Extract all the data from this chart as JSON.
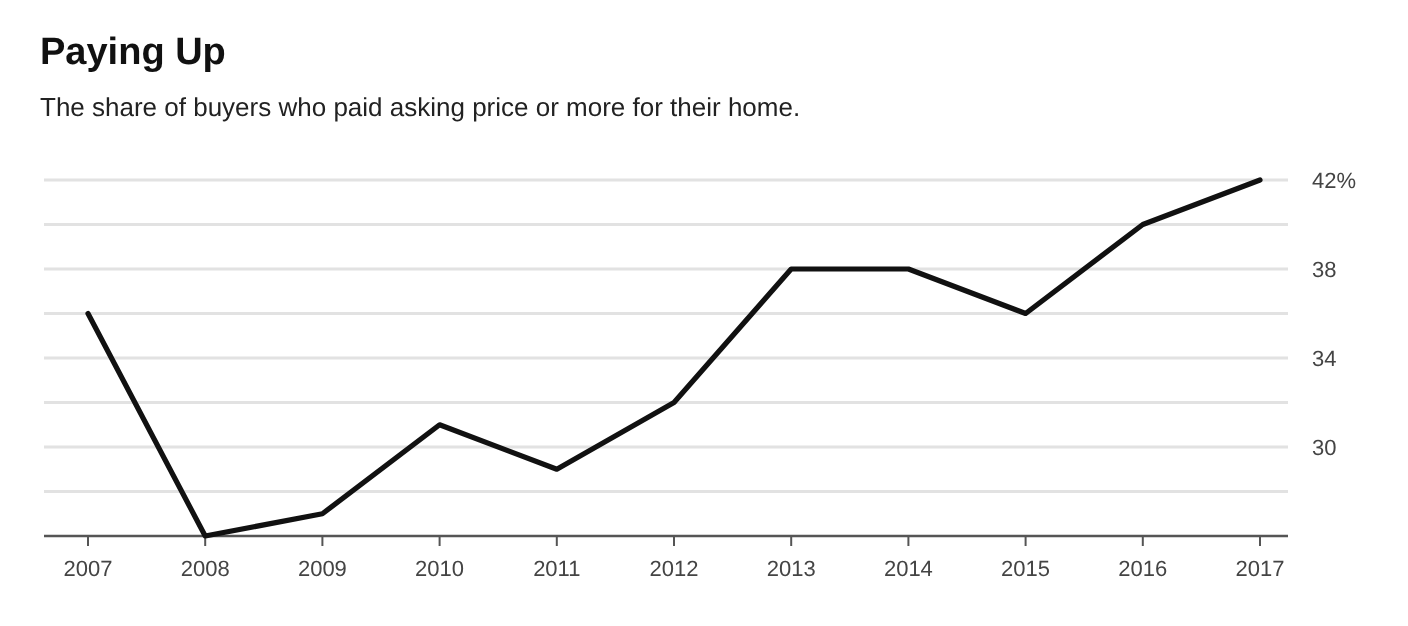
{
  "chart_data": {
    "type": "line",
    "title": "Paying Up",
    "subtitle": "The share of buyers who paid asking price or more for their home.",
    "categories": [
      "2007",
      "2008",
      "2009",
      "2010",
      "2011",
      "2012",
      "2013",
      "2014",
      "2015",
      "2016",
      "2017"
    ],
    "series": [
      {
        "color": "#111111",
        "values": [
          36,
          26,
          27,
          31,
          29,
          32,
          38,
          38,
          36,
          40,
          42
        ]
      }
    ],
    "ylim": [
      26,
      42
    ],
    "yticks": [
      {
        "value": 28,
        "label": null
      },
      30,
      {
        "value": 32,
        "label": null
      },
      34,
      {
        "value": 36,
        "label": null
      },
      38,
      {
        "value": 40,
        "label": null
      },
      {
        "value": 42,
        "label": "42%"
      }
    ],
    "grid": "y",
    "marker": "none",
    "line_style": "solid"
  }
}
